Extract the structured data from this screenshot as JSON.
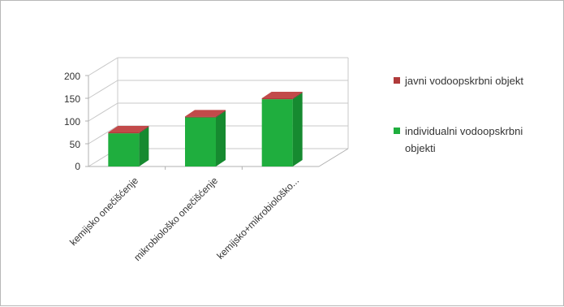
{
  "chart_data": {
    "type": "bar",
    "style": "3d-stacked-column",
    "categories": [
      "kemijsko onečišćenje",
      "mikrobiološko onečišćenje",
      "kemijsko+mikrobiološko..."
    ],
    "series": [
      {
        "name": "individualni vodoopskrbni objekti",
        "color": "#1fae3e",
        "values": [
          73,
          108,
          148
        ]
      },
      {
        "name": "javni vodoopskrbni objekt",
        "color": "#b03a3a",
        "values": [
          2,
          2,
          2
        ]
      }
    ],
    "yticks": [
      "0",
      "50",
      "100",
      "150",
      "200"
    ],
    "ylim": [
      0,
      200
    ],
    "grid": true,
    "legend_position": "right",
    "legend_labels": {
      "first": "javni vodoopskrbni objekt",
      "second_line1": "individualni vodoopskrbni",
      "second_line2": "objekti"
    }
  }
}
